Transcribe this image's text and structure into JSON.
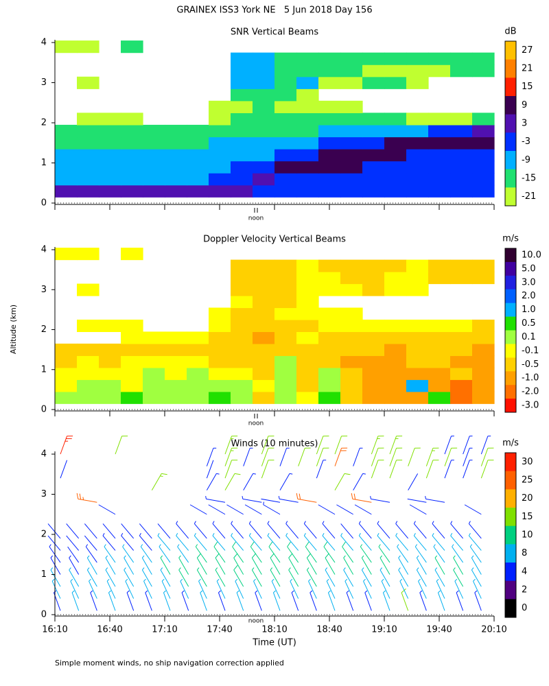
{
  "title": "GRAINEX ISS3 York NE   5 Jun 2018 Day 156",
  "x_label": "Time (UT)",
  "y_label": "Altitude (km)",
  "noon_label": "noon",
  "footnote": "Simple moment winds, no ship navigation correction applied",
  "time_axis": {
    "xlim": [
      "16:10",
      "20:10"
    ],
    "xticks": [
      "16:10",
      "16:40",
      "17:10",
      "17:40",
      "18:10",
      "18:40",
      "19:10",
      "19:40",
      "20:10"
    ]
  },
  "chart_data": [
    {
      "type": "heatmap",
      "title": "SNR Vertical Beams",
      "unit_label": "dB",
      "ylim": [
        0,
        4
      ],
      "yticks": [
        0,
        1,
        2,
        3,
        4
      ],
      "times": [
        "16:10",
        "16:22",
        "16:34",
        "16:46",
        "16:58",
        "17:10",
        "17:22",
        "17:34",
        "17:46",
        "17:58",
        "18:10",
        "18:22",
        "18:34",
        "18:46",
        "18:58",
        "19:10",
        "19:22",
        "19:34",
        "19:46",
        "19:58"
      ],
      "altitudes": [
        0.3,
        0.6,
        0.9,
        1.2,
        1.5,
        1.8,
        2.1,
        2.4,
        2.7,
        3.0,
        3.3,
        3.6,
        3.9
      ],
      "values": [
        [
          3,
          3,
          4,
          4,
          4,
          3,
          3,
          3,
          2,
          -2,
          -4,
          -4,
          -4,
          -4,
          -3,
          -3,
          -3,
          -3,
          -3,
          -3
        ],
        [
          -8,
          -8,
          -8,
          -8,
          -8,
          -8,
          -7,
          -6,
          -6,
          3,
          -2,
          -4,
          -4,
          -3,
          -4,
          -4,
          -4,
          -4,
          -4,
          -4
        ],
        [
          -9,
          -9,
          -9,
          -10,
          -9,
          -9,
          -9,
          -8,
          -6,
          -4,
          6,
          6,
          8,
          8,
          -2,
          -2,
          -2,
          -3,
          -3,
          -3
        ],
        [
          -11,
          -10,
          -10,
          -10,
          -10,
          -10,
          -10,
          -9,
          -7,
          -7,
          -4,
          -3,
          7,
          7,
          7,
          6,
          -3,
          -3,
          -3,
          -4
        ],
        [
          -15,
          -14,
          -14,
          -14,
          -14,
          -14,
          -13,
          -12,
          -12,
          -12,
          -8,
          -8,
          -4,
          -3,
          -3,
          7,
          7,
          7,
          7,
          7
        ],
        [
          -18,
          -18,
          -18,
          -18,
          -17,
          -17,
          -16,
          -16,
          -15,
          -14,
          -14,
          -13,
          -12,
          -12,
          -10,
          -8,
          -8,
          -6,
          -3,
          3
        ],
        [
          null,
          -20,
          -19,
          -19,
          null,
          null,
          null,
          -19,
          -18,
          -18,
          -18,
          -18,
          -18,
          -17,
          -18,
          -18,
          -19,
          -19,
          -19,
          -18
        ],
        [
          null,
          null,
          null,
          null,
          null,
          null,
          null,
          -19,
          -19,
          -18,
          -19,
          -19,
          -19,
          -19,
          null,
          null,
          null,
          null,
          null,
          null
        ],
        [
          null,
          null,
          null,
          null,
          null,
          null,
          null,
          null,
          -18,
          -15,
          -17,
          -19,
          null,
          null,
          null,
          null,
          null,
          null,
          null,
          null
        ],
        [
          null,
          -19,
          null,
          null,
          null,
          null,
          null,
          null,
          -11,
          -10,
          -13,
          -12,
          -19,
          -19,
          -18,
          -18,
          -19,
          null,
          null,
          null
        ],
        [
          null,
          null,
          null,
          null,
          null,
          null,
          null,
          null,
          -8,
          -12,
          -14,
          -17,
          -18,
          -18,
          -19,
          -19,
          -19,
          -19,
          -18,
          -18
        ],
        [
          null,
          null,
          null,
          null,
          null,
          null,
          null,
          null,
          -10,
          -12,
          -13,
          -13,
          -14,
          -16,
          -18,
          -17,
          -18,
          -18,
          -18,
          -18
        ],
        [
          -19,
          -19,
          null,
          -18,
          null,
          null,
          null,
          null,
          null,
          null,
          null,
          null,
          null,
          null,
          null,
          null,
          null,
          null,
          null,
          null
        ]
      ],
      "colorbar": {
        "ticks": [
          27,
          21,
          15,
          9,
          3,
          -3,
          -9,
          -15,
          -21
        ],
        "colors": [
          "#ffc000",
          "#ff8000",
          "#ff2000",
          "#3a0050",
          "#5010b0",
          "#0030ff",
          "#00b0ff",
          "#20e070",
          "#c0ff30"
        ]
      }
    },
    {
      "type": "heatmap",
      "title": "Doppler Velocity Vertical Beams",
      "unit_label": "m/s",
      "ylim": [
        0,
        4
      ],
      "yticks": [
        0,
        1,
        2,
        3,
        4
      ],
      "times": [
        "16:10",
        "16:22",
        "16:34",
        "16:46",
        "16:58",
        "17:10",
        "17:22",
        "17:34",
        "17:46",
        "17:58",
        "18:10",
        "18:22",
        "18:34",
        "18:46",
        "18:58",
        "19:10",
        "19:22",
        "19:34",
        "19:46",
        "19:58"
      ],
      "altitudes": [
        0.3,
        0.6,
        0.9,
        1.2,
        1.5,
        1.8,
        2.1,
        2.4,
        2.7,
        3.0,
        3.3,
        3.6,
        3.9
      ],
      "values": [
        [
          0.2,
          0.3,
          0.0,
          0.5,
          0.2,
          0.1,
          0.3,
          0.5,
          0.2,
          -0.5,
          0.3,
          -0.3,
          0.5,
          -0.4,
          -1.0,
          -0.8,
          -1.2,
          0.5,
          -2.5,
          -1.0
        ],
        [
          -0.1,
          0.1,
          0.0,
          -0.1,
          0.1,
          0.2,
          0.1,
          0.3,
          0.1,
          -0.3,
          0.2,
          -0.4,
          0.3,
          -0.6,
          -1.2,
          -1.0,
          1.0,
          -1.0,
          -2.0,
          -0.8
        ],
        [
          -0.3,
          -0.2,
          -0.1,
          -0.2,
          0.0,
          -0.1,
          0.1,
          -0.1,
          -0.2,
          -0.4,
          0.3,
          -0.5,
          0.1,
          -0.7,
          -1.0,
          -1.2,
          -0.8,
          -1.0,
          -0.7,
          -1.0
        ],
        [
          -0.5,
          -0.3,
          -0.4,
          -0.2,
          -0.3,
          -0.3,
          -0.1,
          -0.4,
          -0.5,
          -0.6,
          0.2,
          -0.6,
          -0.4,
          -0.8,
          -0.9,
          -1.0,
          -0.7,
          -0.5,
          -0.8,
          -0.9
        ],
        [
          -0.5,
          -0.6,
          -0.4,
          -0.5,
          -0.4,
          -0.6,
          -0.4,
          -0.5,
          -0.6,
          -0.7,
          -0.5,
          -0.5,
          -0.4,
          -0.6,
          -0.7,
          -0.8,
          -0.7,
          -0.6,
          -0.7,
          -1.0
        ],
        [
          null,
          null,
          null,
          -0.3,
          -0.2,
          -0.3,
          -0.3,
          -0.5,
          -0.6,
          -0.8,
          -0.6,
          -0.2,
          -0.4,
          -0.5,
          -0.6,
          -0.5,
          -0.5,
          -0.4,
          -0.5,
          -0.6
        ],
        [
          null,
          -0.2,
          -0.1,
          -0.2,
          null,
          null,
          null,
          -0.3,
          -0.5,
          -0.4,
          -0.6,
          -0.4,
          -0.3,
          -0.2,
          -0.3,
          -0.2,
          -0.3,
          -0.2,
          -0.3,
          -0.6
        ],
        [
          null,
          null,
          null,
          null,
          null,
          null,
          null,
          -0.3,
          -0.4,
          -0.5,
          -0.3,
          -0.2,
          -0.3,
          -0.2,
          null,
          null,
          null,
          null,
          null,
          null
        ],
        [
          null,
          null,
          null,
          null,
          null,
          null,
          null,
          null,
          -0.3,
          -0.5,
          -0.4,
          -0.2,
          null,
          null,
          null,
          null,
          null,
          null,
          null,
          null
        ],
        [
          null,
          -0.2,
          null,
          null,
          null,
          null,
          null,
          null,
          -0.4,
          -0.6,
          -0.5,
          -0.3,
          -0.2,
          -0.2,
          -0.4,
          -0.3,
          -0.2,
          null,
          null,
          null
        ],
        [
          null,
          null,
          null,
          null,
          null,
          null,
          null,
          null,
          -0.6,
          -0.5,
          -0.4,
          -0.3,
          -0.3,
          -0.4,
          -0.5,
          -0.3,
          -0.2,
          -0.4,
          -0.6,
          -0.7
        ],
        [
          null,
          null,
          null,
          null,
          null,
          null,
          null,
          null,
          -0.5,
          -0.6,
          -0.4,
          -0.3,
          -0.5,
          -0.6,
          -0.4,
          -0.5,
          -0.3,
          -0.6,
          -0.4,
          -0.5
        ],
        [
          -0.1,
          -0.2,
          null,
          -0.3,
          null,
          null,
          null,
          null,
          null,
          null,
          null,
          null,
          null,
          null,
          null,
          null,
          null,
          null,
          null,
          null
        ]
      ],
      "colorbar": {
        "ticks": [
          {
            "value": 10,
            "label": "10.0"
          },
          {
            "value": 5,
            "label": "5.0"
          },
          {
            "value": 3,
            "label": "3.0"
          },
          {
            "value": 2,
            "label": "2.0"
          },
          {
            "value": 1,
            "label": "1.0"
          },
          0.5,
          0.1,
          -0.1,
          -0.5,
          {
            "value": -1,
            "label": "-1.0"
          },
          {
            "value": -2,
            "label": "-2.0"
          },
          {
            "value": -3,
            "label": "-3.0"
          }
        ],
        "colors": [
          "#300030",
          "#4000a0",
          "#2020e0",
          "#0060ff",
          "#00b0ff",
          "#20e000",
          "#a0ff40",
          "#ffff00",
          "#ffd000",
          "#ffa000",
          "#ff7000",
          "#ff1000"
        ]
      }
    },
    {
      "type": "barbs",
      "title": "Winds (10 minutes)",
      "unit_label": "m/s",
      "ylim": [
        0,
        4
      ],
      "yticks": [
        0,
        1,
        2,
        3,
        4
      ],
      "times": [
        "16:13",
        "16:23",
        "16:33",
        "16:43",
        "16:53",
        "17:03",
        "17:13",
        "17:23",
        "17:33",
        "17:43",
        "17:53",
        "18:03",
        "18:13",
        "18:23",
        "18:33",
        "18:43",
        "18:53",
        "19:03",
        "19:13",
        "19:23",
        "19:33",
        "19:43",
        "19:53",
        "20:03"
      ],
      "altitudes": [
        0.1,
        0.4,
        0.7,
        1.0,
        1.3,
        1.6,
        1.9,
        2.5,
        2.8,
        3.1,
        3.4,
        3.7,
        4.0
      ],
      "directions": [
        340,
        335,
        330,
        330,
        325,
        320,
        320,
        300,
        280,
        30,
        20,
        20,
        20
      ],
      "speeds": [
        [
          5,
          6,
          6,
          5,
          5,
          4,
          3,
          null,
          null,
          null,
          3,
          null,
          28
        ],
        [
          6,
          6,
          7,
          5,
          4,
          4,
          3,
          null,
          null,
          null,
          null,
          null,
          null
        ],
        [
          5,
          7,
          7,
          6,
          5,
          4,
          3,
          null,
          26,
          null,
          null,
          null,
          null
        ],
        [
          6,
          6,
          8,
          7,
          6,
          5,
          4,
          3,
          null,
          null,
          null,
          null,
          14
        ],
        [
          5,
          6,
          7,
          7,
          6,
          5,
          3,
          null,
          null,
          null,
          null,
          null,
          null
        ],
        [
          5,
          6,
          8,
          8,
          7,
          5,
          4,
          null,
          null,
          17,
          null,
          null,
          null
        ],
        [
          6,
          7,
          8,
          9,
          8,
          6,
          4,
          null,
          null,
          null,
          null,
          null,
          null
        ],
        [
          5,
          7,
          9,
          9,
          8,
          6,
          5,
          null,
          null,
          null,
          null,
          null,
          null
        ],
        [
          6,
          7,
          9,
          10,
          9,
          6,
          5,
          3,
          null,
          5,
          4,
          5,
          null
        ],
        [
          5,
          7,
          9,
          10,
          10,
          7,
          5,
          4,
          5,
          14,
          14,
          15,
          15
        ],
        [
          6,
          7,
          10,
          11,
          10,
          7,
          5,
          4,
          null,
          5,
          null,
          5,
          null
        ],
        [
          5,
          6,
          9,
          10,
          11,
          8,
          5,
          4,
          5,
          null,
          13,
          14,
          14
        ],
        [
          6,
          7,
          9,
          11,
          11,
          8,
          5,
          5,
          4,
          5,
          null,
          5,
          null
        ],
        [
          5,
          6,
          9,
          10,
          10,
          8,
          5,
          null,
          5,
          null,
          null,
          13,
          null
        ],
        [
          5,
          7,
          9,
          10,
          11,
          8,
          5,
          null,
          24,
          null,
          5,
          13,
          14
        ],
        [
          6,
          7,
          8,
          10,
          10,
          7,
          5,
          3,
          null,
          14,
          null,
          24,
          14
        ],
        [
          5,
          6,
          8,
          9,
          10,
          7,
          4,
          4,
          null,
          5,
          null,
          5,
          null
        ],
        [
          5,
          7,
          8,
          9,
          9,
          7,
          5,
          4,
          24,
          null,
          14,
          14,
          15
        ],
        [
          6,
          7,
          8,
          9,
          9,
          7,
          5,
          null,
          5,
          null,
          14,
          13,
          15
        ],
        [
          13,
          6,
          7,
          8,
          8,
          7,
          5,
          null,
          null,
          4,
          null,
          14,
          null
        ],
        [
          5,
          6,
          7,
          8,
          8,
          6,
          5,
          4,
          4,
          null,
          14,
          15,
          null
        ],
        [
          6,
          7,
          8,
          9,
          8,
          6,
          5,
          null,
          5,
          null,
          5,
          14,
          5
        ],
        [
          5,
          8,
          9,
          9,
          8,
          6,
          5,
          null,
          null,
          null,
          5,
          5,
          5
        ],
        [
          5,
          6,
          7,
          8,
          8,
          6,
          5,
          4,
          null,
          null,
          13,
          14,
          5
        ]
      ],
      "colorbar": {
        "ticks": [
          30,
          25,
          20,
          15,
          10,
          8,
          4,
          2,
          0
        ],
        "colors": [
          "#ff2000",
          "#ff6000",
          "#ffb000",
          "#80e000",
          "#00d080",
          "#00b0f0",
          "#0020ff",
          "#500080",
          "#000000"
        ]
      }
    }
  ]
}
